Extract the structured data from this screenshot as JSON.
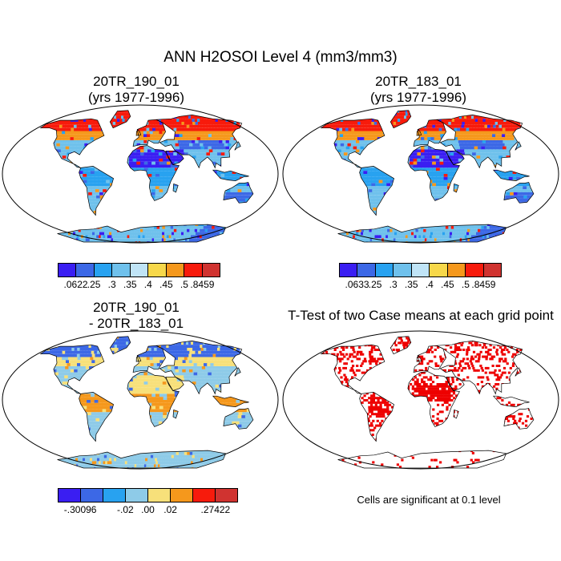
{
  "title": "ANN H2OSOI Level 4 (mm3/mm3)",
  "panels": [
    {
      "id": "p1",
      "title_line1": "20TR_190_01",
      "title_line2": "(yrs 1977-1996)"
    },
    {
      "id": "p2",
      "title_line1": "20TR_183_01",
      "title_line2": "(yrs 1977-1996)"
    },
    {
      "id": "p3",
      "title_line1": "20TR_190_01",
      "title_line2": "- 20TR_183_01"
    },
    {
      "id": "p4",
      "title_line1": "T-Test of two Case means at each grid point"
    }
  ],
  "colorbars": {
    "p1": {
      "colors": [
        "#3a1ef2",
        "#3c68e6",
        "#28a2f0",
        "#6fc1ec",
        "#c0e4f6",
        "#f7d84a",
        "#f5981c",
        "#f71b0c",
        "#d03330"
      ],
      "labels": [
        ".0622",
        ".25",
        ".3",
        ".35",
        ".4",
        ".45",
        ".5",
        ".8459"
      ]
    },
    "p2": {
      "colors": [
        "#3a1ef2",
        "#3c68e6",
        "#28a2f0",
        "#6fc1ec",
        "#c0e4f6",
        "#f7d84a",
        "#f5981c",
        "#f71b0c",
        "#d03330"
      ],
      "labels": [
        ".0633",
        ".25",
        ".3",
        ".35",
        ".4",
        ".45",
        ".5",
        ".8459"
      ]
    },
    "p3": {
      "colors": [
        "#3a1ef2",
        "#3c68e6",
        "#28a2f0",
        "#8ecbe8",
        "#f7e07a",
        "#f5981c",
        "#f71b0c",
        "#d03330"
      ],
      "labels": [
        "-.30096",
        "-.02",
        ".00",
        ".02",
        ".27422"
      ]
    }
  },
  "significance_note": "Cells are significant at 0.1 level",
  "significance_color": "#ee0000",
  "map_fill_colors": {
    "p1": {
      "polar": "#f71b0c",
      "boreal": "#f5981c",
      "temperate": "#6fc1ec",
      "desert": "#3a1ef2",
      "tropics": "#28a2f0",
      "dry": "#3c68e6"
    },
    "p2": {
      "polar": "#f71b0c",
      "boreal": "#f5981c",
      "temperate": "#6fc1ec",
      "desert": "#3a1ef2",
      "tropics": "#28a2f0",
      "dry": "#3c68e6"
    },
    "p3": {
      "polar": "#3c68e6",
      "boreal": "#f7e07a",
      "temperate": "#8ecbe8",
      "desert": "#f7e07a",
      "tropics": "#f5981c",
      "dry": "#8ecbe8"
    }
  }
}
